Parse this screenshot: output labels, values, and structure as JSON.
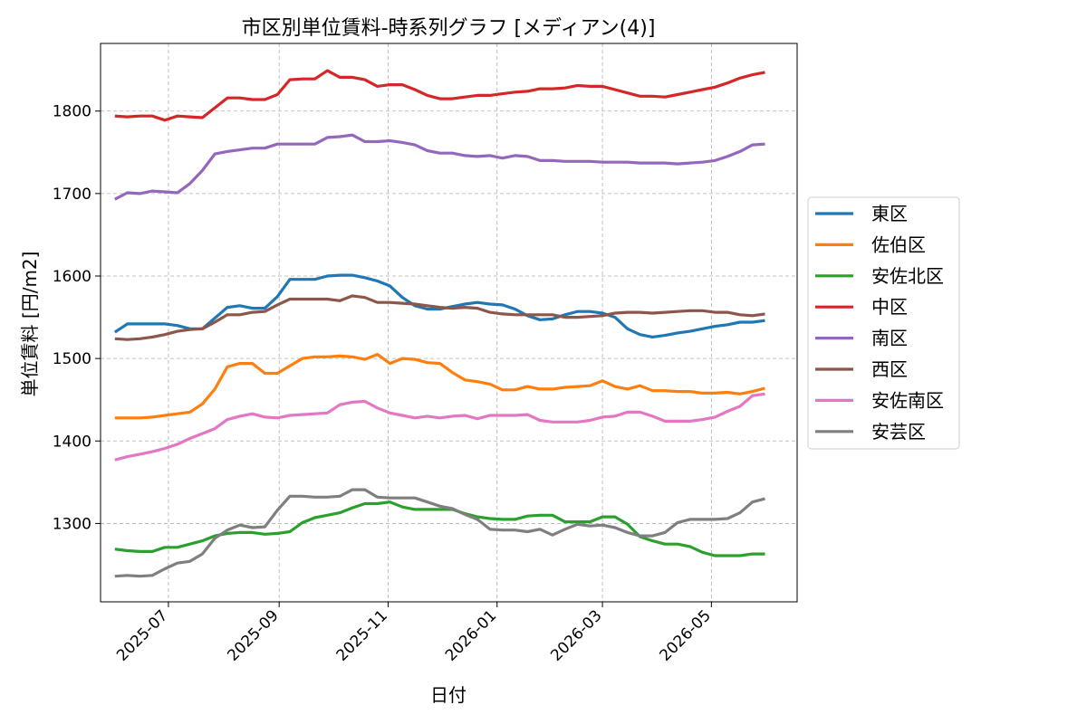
{
  "chart_data": {
    "type": "line",
    "title": "市区別単位賃料-時系列グラフ [メディアン(4)]",
    "xlabel": "日付",
    "ylabel": "単位賃料 [円/m2]",
    "grid": true,
    "legend_position": "right",
    "xlim": [
      "2025-05-24",
      "2026-06-18"
    ],
    "ylim": [
      1205,
      1882
    ],
    "yticks": [
      1300,
      1400,
      1500,
      1600,
      1700,
      1800
    ],
    "xticks": [
      "2025-07",
      "2025-09",
      "2025-11",
      "2026-01",
      "2026-03",
      "2026-05"
    ],
    "x": [
      "2025-06-01",
      "2025-06-08",
      "2025-06-15",
      "2025-06-22",
      "2025-06-29",
      "2025-07-06",
      "2025-07-13",
      "2025-07-20",
      "2025-07-27",
      "2025-08-03",
      "2025-08-10",
      "2025-08-17",
      "2025-08-24",
      "2025-08-31",
      "2025-09-07",
      "2025-09-14",
      "2025-09-21",
      "2025-09-28",
      "2025-10-05",
      "2025-10-12",
      "2025-10-19",
      "2025-10-26",
      "2025-11-02",
      "2025-11-09",
      "2025-11-16",
      "2025-11-23",
      "2025-11-30",
      "2025-12-07",
      "2025-12-14",
      "2025-12-21",
      "2025-12-28",
      "2026-01-04",
      "2026-01-11",
      "2026-01-18",
      "2026-01-25",
      "2026-02-01",
      "2026-02-08",
      "2026-02-15",
      "2026-02-22",
      "2026-03-01",
      "2026-03-08",
      "2026-03-15",
      "2026-03-22",
      "2026-03-29",
      "2026-04-05",
      "2026-04-12",
      "2026-04-19",
      "2026-04-26",
      "2026-05-03",
      "2026-05-10",
      "2026-05-17",
      "2026-05-24",
      "2026-05-31"
    ],
    "series": [
      {
        "name": "東区",
        "color": "#1f77b4",
        "values": [
          1532,
          1542,
          1542,
          1542,
          1542,
          1540,
          1536,
          1536,
          1549,
          1562,
          1564,
          1561,
          1561,
          1575,
          1596,
          1596,
          1596,
          1600,
          1601,
          1601,
          1598,
          1594,
          1588,
          1574,
          1564,
          1560,
          1560,
          1563,
          1566,
          1568,
          1566,
          1565,
          1560,
          1552,
          1547,
          1548,
          1553,
          1557,
          1557,
          1555,
          1550,
          1536,
          1529,
          1526,
          1528,
          1531,
          1533,
          1536,
          1539,
          1541,
          1544,
          1544,
          1546
        ]
      },
      {
        "name": "佐伯区",
        "color": "#ff7f0e",
        "values": [
          1428,
          1428,
          1428,
          1429,
          1431,
          1433,
          1435,
          1445,
          1463,
          1490,
          1494,
          1494,
          1482,
          1482,
          1491,
          1500,
          1502,
          1502,
          1503,
          1502,
          1499,
          1505,
          1494,
          1500,
          1499,
          1495,
          1494,
          1483,
          1474,
          1472,
          1469,
          1462,
          1462,
          1466,
          1463,
          1463,
          1465,
          1466,
          1467,
          1473,
          1466,
          1463,
          1467,
          1461,
          1461,
          1460,
          1460,
          1458,
          1458,
          1459,
          1457,
          1460,
          1464
        ]
      },
      {
        "name": "安佐北区",
        "color": "#2ca02c",
        "values": [
          1269,
          1267,
          1266,
          1266,
          1271,
          1271,
          1275,
          1279,
          1285,
          1288,
          1289,
          1289,
          1287,
          1288,
          1290,
          1301,
          1307,
          1310,
          1313,
          1319,
          1324,
          1324,
          1326,
          1320,
          1317,
          1317,
          1317,
          1317,
          1312,
          1308,
          1306,
          1305,
          1305,
          1309,
          1310,
          1310,
          1302,
          1302,
          1302,
          1308,
          1308,
          1299,
          1284,
          1279,
          1275,
          1275,
          1272,
          1265,
          1261,
          1261,
          1261,
          1263,
          1263
        ]
      },
      {
        "name": "中区",
        "color": "#d62728",
        "values": [
          1794,
          1793,
          1794,
          1794,
          1789,
          1794,
          1793,
          1792,
          1804,
          1816,
          1816,
          1814,
          1814,
          1820,
          1838,
          1839,
          1839,
          1849,
          1841,
          1841,
          1838,
          1830,
          1832,
          1832,
          1826,
          1819,
          1815,
          1815,
          1817,
          1819,
          1819,
          1821,
          1823,
          1824,
          1827,
          1827,
          1828,
          1831,
          1830,
          1830,
          1826,
          1822,
          1818,
          1818,
          1817,
          1820,
          1823,
          1826,
          1829,
          1834,
          1840,
          1844,
          1847
        ]
      },
      {
        "name": "南区",
        "color": "#9467bd",
        "values": [
          1693,
          1701,
          1700,
          1703,
          1702,
          1701,
          1712,
          1728,
          1748,
          1751,
          1753,
          1755,
          1755,
          1760,
          1760,
          1760,
          1760,
          1768,
          1769,
          1771,
          1763,
          1763,
          1764,
          1762,
          1759,
          1752,
          1749,
          1749,
          1746,
          1745,
          1746,
          1743,
          1746,
          1745,
          1740,
          1740,
          1739,
          1739,
          1739,
          1738,
          1738,
          1738,
          1737,
          1737,
          1737,
          1736,
          1737,
          1738,
          1740,
          1745,
          1751,
          1759,
          1760
        ]
      },
      {
        "name": "西区",
        "color": "#8c564b",
        "values": [
          1524,
          1523,
          1524,
          1526,
          1529,
          1533,
          1535,
          1536,
          1544,
          1553,
          1553,
          1556,
          1557,
          1565,
          1572,
          1572,
          1572,
          1572,
          1570,
          1576,
          1574,
          1568,
          1568,
          1567,
          1566,
          1564,
          1562,
          1561,
          1562,
          1561,
          1556,
          1554,
          1553,
          1553,
          1553,
          1553,
          1550,
          1550,
          1551,
          1552,
          1555,
          1556,
          1556,
          1555,
          1556,
          1557,
          1558,
          1558,
          1556,
          1556,
          1553,
          1552,
          1554
        ]
      },
      {
        "name": "安佐南区",
        "color": "#e377c2",
        "values": [
          1377,
          1381,
          1384,
          1387,
          1391,
          1396,
          1403,
          1409,
          1415,
          1426,
          1430,
          1433,
          1429,
          1428,
          1431,
          1432,
          1433,
          1434,
          1444,
          1447,
          1448,
          1440,
          1434,
          1431,
          1428,
          1430,
          1428,
          1430,
          1431,
          1427,
          1431,
          1431,
          1431,
          1432,
          1425,
          1423,
          1423,
          1423,
          1425,
          1429,
          1430,
          1435,
          1435,
          1430,
          1424,
          1424,
          1424,
          1426,
          1429,
          1436,
          1442,
          1455,
          1457
        ]
      },
      {
        "name": "安芸区",
        "color": "#7f7f7f",
        "values": [
          1236,
          1237,
          1236,
          1237,
          1245,
          1252,
          1254,
          1263,
          1282,
          1292,
          1298,
          1295,
          1296,
          1316,
          1333,
          1333,
          1332,
          1332,
          1333,
          1341,
          1341,
          1332,
          1331,
          1331,
          1331,
          1326,
          1321,
          1318,
          1311,
          1305,
          1293,
          1292,
          1292,
          1290,
          1293,
          1286,
          1293,
          1299,
          1297,
          1298,
          1295,
          1289,
          1285,
          1285,
          1289,
          1301,
          1305,
          1305,
          1305,
          1306,
          1313,
          1326,
          1330
        ]
      }
    ]
  }
}
